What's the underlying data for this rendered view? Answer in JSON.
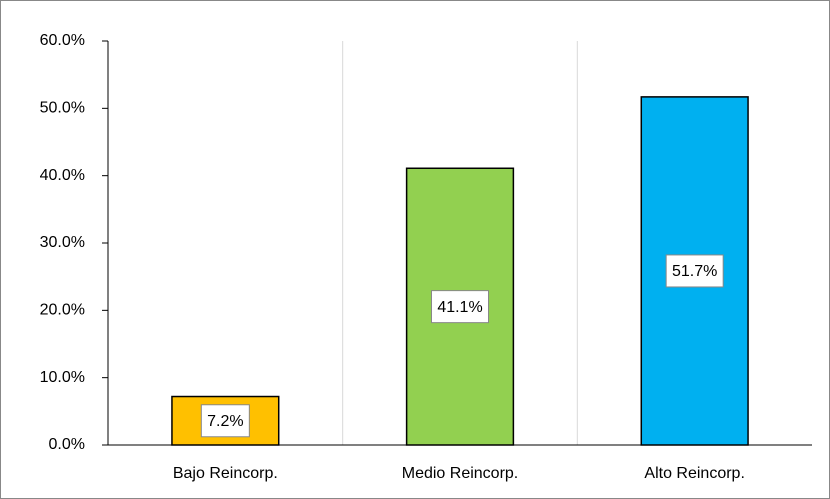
{
  "chart_data": {
    "type": "bar",
    "categories": [
      "Bajo Reincorp.",
      "Medio Reincorp.",
      "Alto Reincorp."
    ],
    "values": [
      7.2,
      41.1,
      51.7
    ],
    "value_labels": [
      "7.2%",
      "41.1%",
      "51.7%"
    ],
    "colors": [
      "#FFC000",
      "#92D050",
      "#00B0F0"
    ],
    "ylim": [
      0,
      60
    ],
    "yticks": [
      {
        "value": 0,
        "label": "0.0%"
      },
      {
        "value": 10,
        "label": "10.0%"
      },
      {
        "value": 20,
        "label": "20.0%"
      },
      {
        "value": 30,
        "label": "30.0%"
      },
      {
        "value": 40,
        "label": "40.0%"
      },
      {
        "value": 50,
        "label": "50.0%"
      },
      {
        "value": 60,
        "label": "60.0%"
      }
    ]
  }
}
